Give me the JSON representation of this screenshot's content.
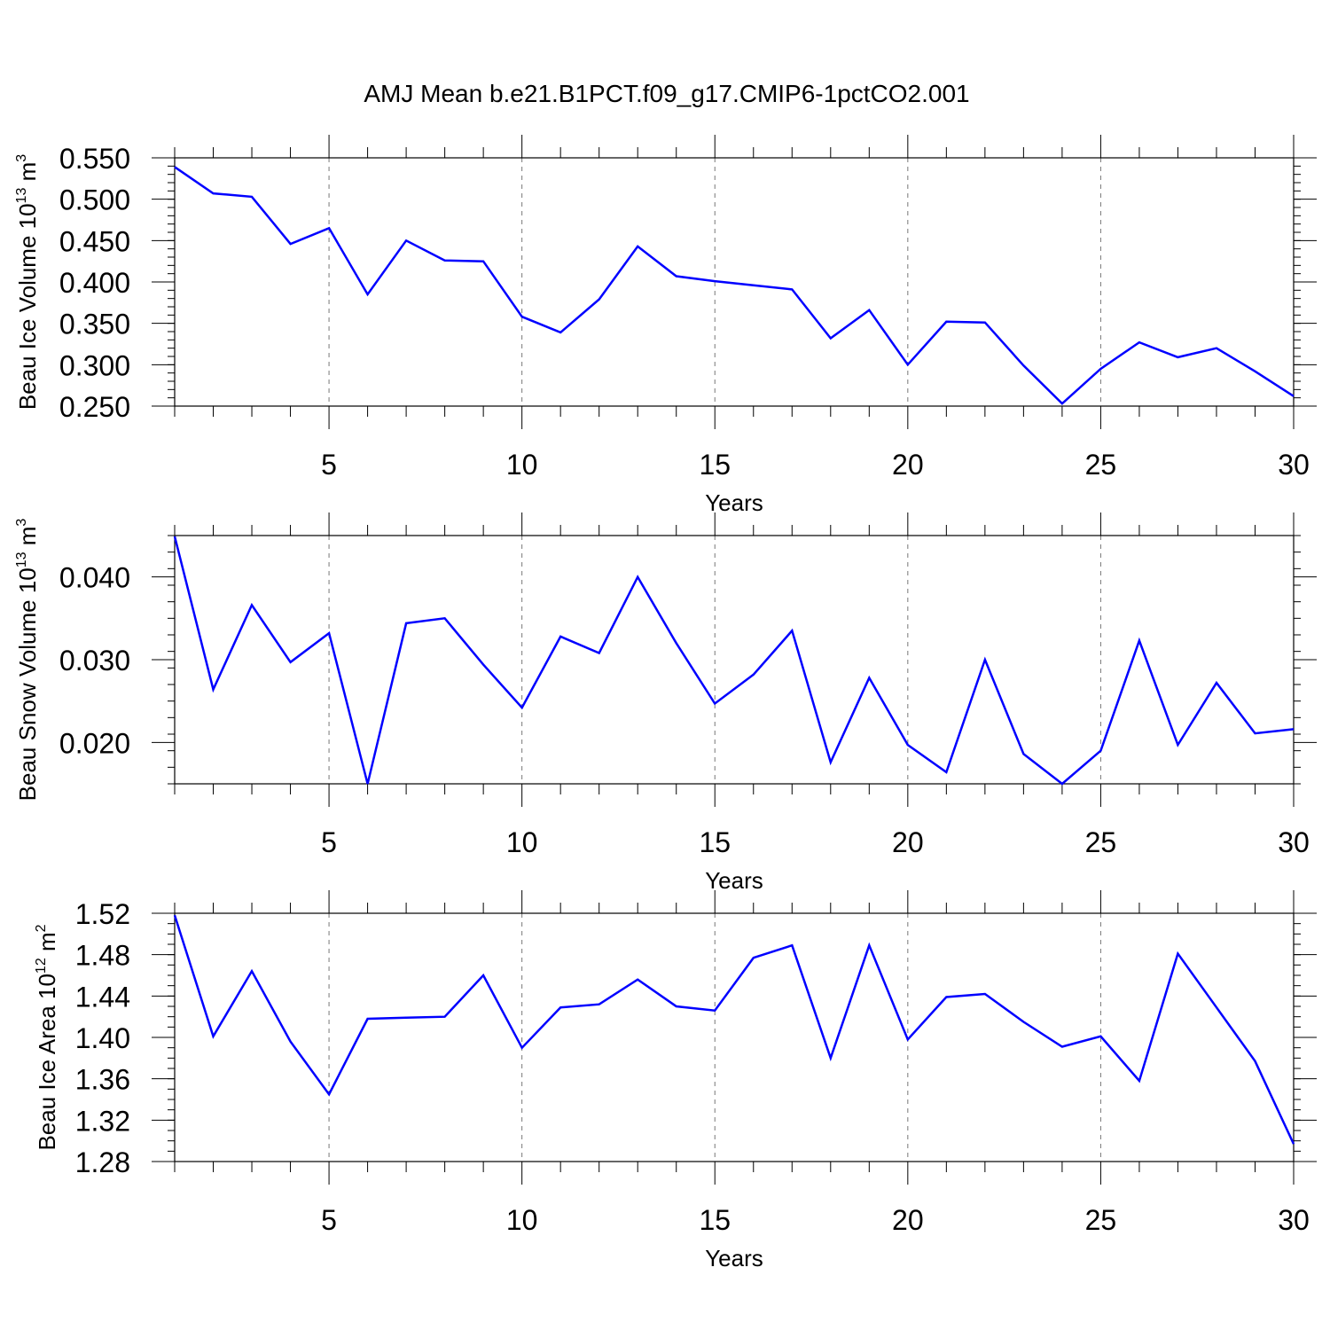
{
  "figure": {
    "title": "AMJ Mean b.e21.B1PCT.f09_g17.CMIP6-1pctCO2.001"
  },
  "chart_data": [
    {
      "type": "line",
      "title": "",
      "xlabel": "Years",
      "ylabel": {
        "main": "Beau Ice Volume 10",
        "exp": "13",
        "unit": " m",
        "unit_exp": "3"
      },
      "xlim": [
        1,
        30
      ],
      "ylim": [
        0.25,
        0.55
      ],
      "x_ticks": [
        5,
        10,
        15,
        20,
        25,
        30
      ],
      "x_tick_labels": [
        "5",
        "10",
        "15",
        "20",
        "25",
        "30"
      ],
      "y_ticks": [
        0.25,
        0.3,
        0.35,
        0.4,
        0.45,
        0.5,
        0.55
      ],
      "y_tick_labels": [
        "0.250",
        "0.300",
        "0.350",
        "0.400",
        "0.450",
        "0.500",
        "0.550"
      ],
      "y_minor_step": 0.01,
      "grid": "x dashed at major ticks",
      "line_color": "#0000ff",
      "series": [
        {
          "x": [
            1,
            2,
            3,
            4,
            5,
            6,
            7,
            8,
            9,
            10,
            11,
            12,
            13,
            14,
            15,
            16,
            17,
            18,
            19,
            20,
            21,
            22,
            23,
            24,
            25,
            26,
            27,
            28,
            29,
            30
          ],
          "values": [
            0.539,
            0.507,
            0.503,
            0.446,
            0.465,
            0.385,
            0.45,
            0.426,
            0.425,
            0.358,
            0.339,
            0.379,
            0.443,
            0.407,
            0.401,
            0.396,
            0.391,
            0.332,
            0.366,
            0.3,
            0.352,
            0.351,
            0.299,
            0.253,
            0.295,
            0.327,
            0.309,
            0.32,
            0.292,
            0.262
          ]
        }
      ]
    },
    {
      "type": "line",
      "title": "",
      "xlabel": "Years",
      "ylabel": {
        "main": "Beau Snow Volume 10",
        "exp": "13",
        "unit": " m",
        "unit_exp": "3"
      },
      "xlim": [
        1,
        30
      ],
      "ylim": [
        0.015,
        0.045
      ],
      "x_ticks": [
        5,
        10,
        15,
        20,
        25,
        30
      ],
      "x_tick_labels": [
        "5",
        "10",
        "15",
        "20",
        "25",
        "30"
      ],
      "y_ticks": [
        0.02,
        0.03,
        0.04
      ],
      "y_tick_labels": [
        "0.020",
        "0.030",
        "0.040"
      ],
      "y_minor_step": 0.002,
      "grid": "x dashed at major ticks",
      "line_color": "#0000ff",
      "series": [
        {
          "x": [
            1,
            2,
            3,
            4,
            5,
            6,
            7,
            8,
            9,
            10,
            11,
            12,
            13,
            14,
            15,
            16,
            17,
            18,
            19,
            20,
            21,
            22,
            23,
            24,
            25,
            26,
            27,
            28,
            29,
            30
          ],
          "values": [
            0.0449,
            0.0264,
            0.0366,
            0.0297,
            0.0332,
            0.015,
            0.0344,
            0.035,
            0.0294,
            0.0242,
            0.0328,
            0.0308,
            0.04,
            0.032,
            0.0247,
            0.0282,
            0.0335,
            0.0176,
            0.0278,
            0.0197,
            0.0164,
            0.03,
            0.0186,
            0.015,
            0.019,
            0.0323,
            0.0197,
            0.0272,
            0.0211,
            0.0216
          ]
        }
      ]
    },
    {
      "type": "line",
      "title": "",
      "xlabel": "Years",
      "ylabel": {
        "main": "Beau Ice Area 10",
        "exp": "12",
        "unit": " m",
        "unit_exp": "2"
      },
      "xlim": [
        1,
        30
      ],
      "ylim": [
        1.28,
        1.52
      ],
      "x_ticks": [
        5,
        10,
        15,
        20,
        25,
        30
      ],
      "x_tick_labels": [
        "5",
        "10",
        "15",
        "20",
        "25",
        "30"
      ],
      "y_ticks": [
        1.28,
        1.32,
        1.36,
        1.4,
        1.44,
        1.48,
        1.52
      ],
      "y_tick_labels": [
        "1.28",
        "1.32",
        "1.36",
        "1.40",
        "1.44",
        "1.48",
        "1.52"
      ],
      "y_minor_step": 0.01,
      "grid": "x dashed at major ticks",
      "line_color": "#0000ff",
      "series": [
        {
          "x": [
            1,
            2,
            3,
            4,
            5,
            6,
            7,
            8,
            9,
            10,
            11,
            12,
            13,
            14,
            15,
            16,
            17,
            18,
            19,
            20,
            21,
            22,
            23,
            24,
            25,
            26,
            27,
            28,
            29,
            30
          ],
          "values": [
            1.518,
            1.401,
            1.464,
            1.396,
            1.345,
            1.418,
            1.419,
            1.42,
            1.46,
            1.39,
            1.429,
            1.432,
            1.456,
            1.43,
            1.426,
            1.477,
            1.489,
            1.38,
            1.489,
            1.398,
            1.439,
            1.442,
            1.415,
            1.391,
            1.401,
            1.358,
            1.481,
            1.429,
            1.377,
            1.297
          ]
        }
      ]
    }
  ]
}
